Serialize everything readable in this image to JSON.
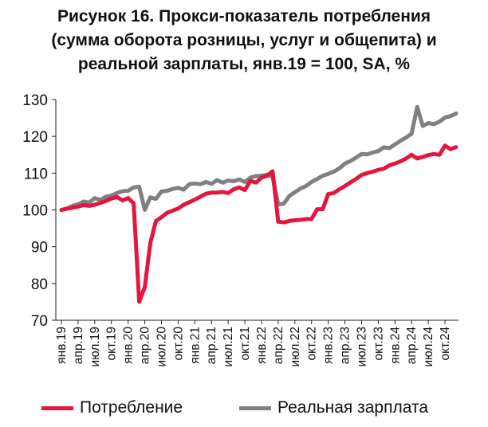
{
  "chart_data": {
    "type": "line",
    "title": [
      "Рисунок 16. Прокси-показатель потребления",
      "(сумма оборота розницы, услуг и общепита) и",
      "реальной зарплаты, янв.19 = 100, SA, %"
    ],
    "xlabel": "",
    "ylabel": "",
    "ylim": [
      70,
      130
    ],
    "yticks": [
      70,
      80,
      90,
      100,
      110,
      120,
      130
    ],
    "grid": false,
    "legend_position": "bottom",
    "x_tick_labels": [
      "янв.19",
      "апр.19",
      "июл.19",
      "окт.19",
      "янв.20",
      "апр.20",
      "июл.20",
      "окт.20",
      "янв.21",
      "апр.21",
      "июл.21",
      "окт.21",
      "янв.22",
      "апр.22",
      "июл.22",
      "окт.22",
      "янв.23",
      "апр.23",
      "июл.23",
      "окт.23",
      "янв.24",
      "апр.24",
      "июл.24",
      "окт.24"
    ],
    "x_tick_step_months": 3,
    "series": [
      {
        "name": "Потребление",
        "color": "#e3173e",
        "values": [
          100.0,
          100.3,
          100.6,
          100.9,
          101.3,
          101.1,
          101.4,
          101.9,
          102.4,
          103.1,
          103.5,
          102.6,
          103.2,
          101.8,
          75.0,
          79.0,
          91.0,
          97.0,
          98.0,
          99.2,
          99.8,
          100.4,
          101.4,
          102.1,
          102.8,
          103.6,
          104.4,
          104.7,
          104.7,
          104.9,
          104.6,
          105.6,
          106.1,
          105.4,
          107.9,
          107.4,
          108.8,
          109.3,
          110.5,
          96.8,
          96.6,
          97.0,
          97.2,
          97.3,
          97.5,
          97.5,
          100.2,
          100.2,
          104.3,
          104.6,
          105.6,
          106.5,
          107.5,
          108.4,
          109.5,
          110.0,
          110.4,
          110.9,
          111.2,
          112.1,
          112.6,
          113.2,
          114.0,
          115.0,
          114.0,
          114.4,
          114.9,
          115.2,
          115.0,
          117.5,
          116.5,
          117.1
        ]
      },
      {
        "name": "Реальная зарплата",
        "color": "#808083",
        "values": [
          100.0,
          100.4,
          101.1,
          101.5,
          102.3,
          102.0,
          103.2,
          102.7,
          103.6,
          103.9,
          104.6,
          105.1,
          105.2,
          106.1,
          106.3,
          100.0,
          103.4,
          103.0,
          105.0,
          105.2,
          105.7,
          106.0,
          105.5,
          107.0,
          107.2,
          107.0,
          107.6,
          107.1,
          108.1,
          107.4,
          108.0,
          107.8,
          108.3,
          107.6,
          108.8,
          109.2,
          109.3,
          109.6,
          109.0,
          101.5,
          101.7,
          103.8,
          104.8,
          105.8,
          106.5,
          107.6,
          108.4,
          109.3,
          109.8,
          110.4,
          111.3,
          112.6,
          113.3,
          114.2,
          115.2,
          115.1,
          115.6,
          116.0,
          117.0,
          116.8,
          117.8,
          118.8,
          119.7,
          120.7,
          128.0,
          122.8,
          123.6,
          123.3,
          124.0,
          125.1,
          125.5,
          126.2
        ]
      }
    ]
  }
}
